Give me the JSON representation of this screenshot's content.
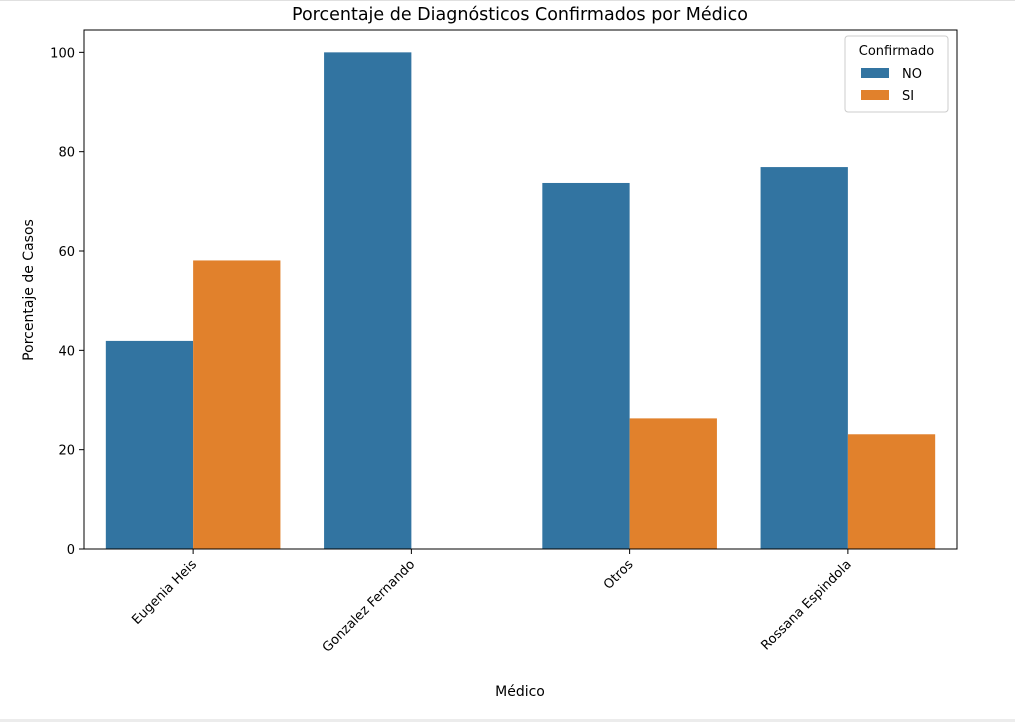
{
  "chart_data": {
    "type": "bar",
    "title": "Porcentaje de Diagnósticos Confirmados por Médico",
    "xlabel": "Médico",
    "ylabel": "Porcentaje de Casos",
    "categories": [
      "Eugenia Heis",
      "Gonzalez Fernando",
      "Otros",
      "Rossana Espindola"
    ],
    "series": [
      {
        "name": "NO",
        "color": "#3274a1",
        "values": [
          41.9,
          100,
          73.7,
          76.9
        ]
      },
      {
        "name": "SI",
        "color": "#e1812c",
        "values": [
          58.1,
          0,
          26.3,
          23.1
        ]
      }
    ],
    "ylim": [
      0,
      104.5
    ],
    "yticks": [
      0,
      20,
      40,
      60,
      80,
      100
    ],
    "legend": {
      "title": "Confirmado",
      "position": "top-right"
    },
    "grid": false
  }
}
